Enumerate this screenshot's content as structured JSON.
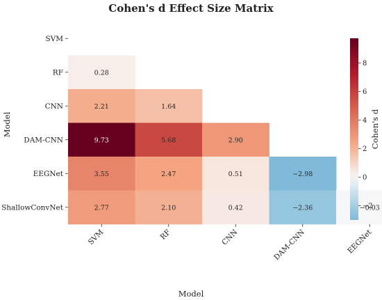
{
  "chart_data": {
    "type": "heatmap",
    "title": "Cohen's d Effect Size Matrix",
    "xlabel": "Model",
    "ylabel": "Model",
    "categories": [
      "SVM",
      "RF",
      "CNN",
      "DAM-CNN",
      "EEGNet",
      "ShallowConvNet"
    ],
    "mask": "upper-triangle-and-diagonal",
    "values": [
      [
        null,
        null,
        null,
        null,
        null,
        null
      ],
      [
        0.28,
        null,
        null,
        null,
        null,
        null
      ],
      [
        2.21,
        1.64,
        null,
        null,
        null,
        null
      ],
      [
        9.73,
        5.68,
        2.9,
        null,
        null,
        null
      ],
      [
        3.55,
        2.47,
        0.51,
        -2.98,
        null,
        null
      ],
      [
        2.77,
        2.1,
        0.42,
        -2.36,
        -0.03,
        null
      ]
    ],
    "cell_labels": [
      [
        null,
        null,
        null,
        null,
        null,
        null
      ],
      [
        "0.28",
        null,
        null,
        null,
        null,
        null
      ],
      [
        "2.21",
        "1.64",
        null,
        null,
        null,
        null
      ],
      [
        "9.73",
        "5.68",
        "2.90",
        null,
        null,
        null
      ],
      [
        "3.55",
        "2.47",
        "0.51",
        "−2.98",
        null,
        null
      ],
      [
        "2.77",
        "2.10",
        "0.42",
        "−2.36",
        "−0.03",
        null
      ]
    ],
    "colormap": "RdBu_r",
    "center": 0,
    "vmin": -3.0,
    "vmax": 9.73,
    "colorbar": {
      "label": "Cohen's d",
      "ticks": [
        -2,
        0,
        2,
        4,
        6,
        8
      ],
      "tick_labels": [
        "−2",
        "0",
        "2",
        "4",
        "6",
        "8"
      ]
    }
  }
}
